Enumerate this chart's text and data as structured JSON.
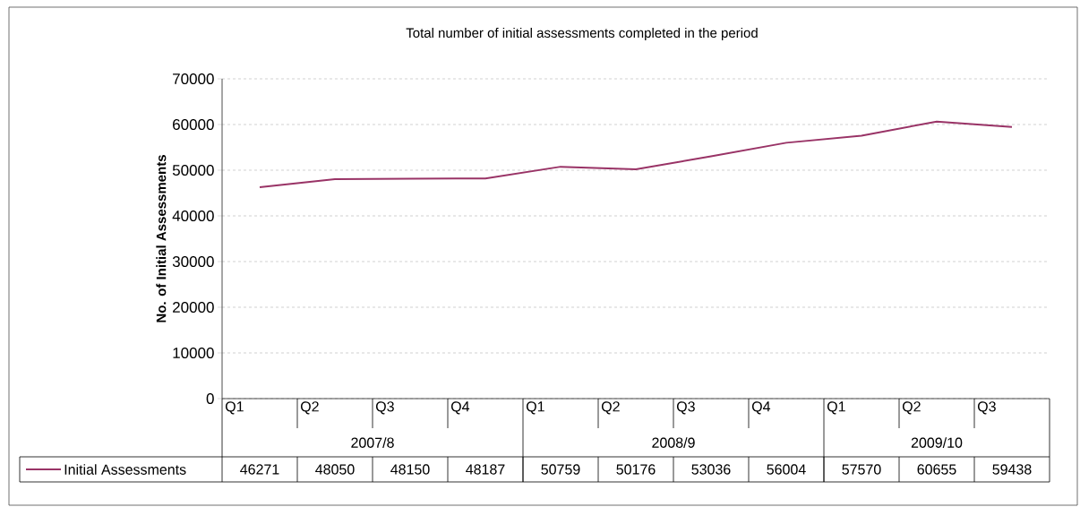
{
  "chart_data": {
    "type": "line",
    "title": "Total number of initial assessments completed in the period",
    "ylabel": "No. of Initial Assessments",
    "categories": [
      "Q1",
      "Q2",
      "Q3",
      "Q4",
      "Q1",
      "Q2",
      "Q3",
      "Q4",
      "Q1",
      "Q2",
      "Q3"
    ],
    "annotations": [
      "2007/8",
      "2008/9",
      "2009/10"
    ],
    "series": [
      {
        "name": "Initial Assessments",
        "color": "#993366",
        "values": [
          46271,
          48050,
          48150,
          48187,
          50759,
          50176,
          53036,
          56004,
          57570,
          60655,
          59438
        ]
      }
    ],
    "ylim": [
      0,
      70000
    ],
    "yticks": [
      0,
      10000,
      20000,
      30000,
      40000,
      50000,
      60000,
      70000
    ],
    "grid": "y",
    "legend": "bottom",
    "data_labels": true,
    "marker": "none",
    "line_style": "solid"
  }
}
